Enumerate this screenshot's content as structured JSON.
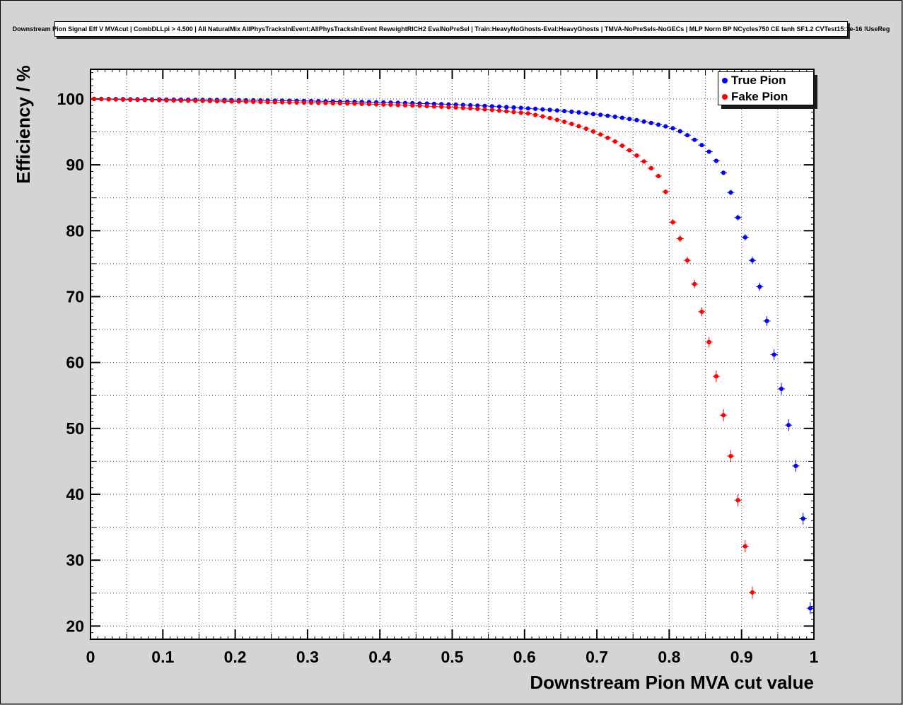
{
  "title": "Downstream Pion Signal Eff V MVAcut | CombDLLpi > 4.500 | All NaturalMix AllPhysTracksInEvent:AllPhysTracksInEvent ReweightRICH2 EvalNoPreSel | Train:HeavyNoGhosts-Eval:HeavyGhosts | TMVA-NoPreSels-NoGECs | MLP Norm BP NCycles750 CE tanh SF1.2 CVTest15:1e-16 !UseReg",
  "colors": {
    "canvas_background": "#d4d4d4",
    "frame_background": "#ffffff",
    "grid": "#444444",
    "true_pion": "#0000ff",
    "fake_pion": "#ff0000"
  },
  "chart_data": {
    "type": "scatter",
    "title": "Downstream Pion Signal Eff V MVAcut | CombDLLpi > 4.500 | All NaturalMix AllPhysTracksInEvent:AllPhysTracksInEvent ReweightRICH2 EvalNoPreSel | Train:HeavyNoGhosts-Eval:HeavyGhosts | TMVA-NoPreSels-NoGECs | MLP Norm BP NCycles750 CE tanh SF1.2 CVTest15:1e-16 !UseReg",
    "xlabel": "Downstream Pion MVA cut value",
    "ylabel": "Efficiency / %",
    "xlim": [
      0,
      1
    ],
    "ylim": [
      18,
      104.5
    ],
    "x_ticks": [
      0,
      0.1,
      0.2,
      0.3,
      0.4,
      0.5,
      0.6,
      0.7,
      0.8,
      0.9,
      1
    ],
    "x_tick_labels": [
      "0",
      "0.1",
      "0.2",
      "0.3",
      "0.4",
      "0.5",
      "0.6",
      "0.7",
      "0.8",
      "0.9",
      "1"
    ],
    "y_ticks": [
      20,
      30,
      40,
      50,
      60,
      70,
      80,
      90,
      100
    ],
    "y_tick_labels": [
      "20",
      "30",
      "40",
      "50",
      "60",
      "70",
      "80",
      "90",
      "100"
    ],
    "grid": {
      "enabled": true,
      "style": "dotted",
      "x_step": 0.05,
      "y_step": 5
    },
    "legend_position": "top-right",
    "series": [
      {
        "name": "True Pion",
        "color": "#0000ff",
        "marker": "filled-circle",
        "x_start": 0.005,
        "x_step": 0.01,
        "y": [
          100.0,
          100.0,
          99.99,
          99.98,
          99.97,
          99.96,
          99.95,
          99.94,
          99.93,
          99.92,
          99.91,
          99.9,
          99.89,
          99.88,
          99.87,
          99.86,
          99.85,
          99.84,
          99.83,
          99.82,
          99.81,
          99.8,
          99.79,
          99.78,
          99.76,
          99.75,
          99.74,
          99.72,
          99.71,
          99.69,
          99.68,
          99.66,
          99.64,
          99.62,
          99.6,
          99.58,
          99.56,
          99.54,
          99.52,
          99.49,
          99.47,
          99.44,
          99.41,
          99.38,
          99.35,
          99.32,
          99.29,
          99.25,
          99.21,
          99.17,
          99.13,
          99.09,
          99.04,
          98.99,
          98.94,
          98.89,
          98.83,
          98.77,
          98.71,
          98.64,
          98.57,
          98.5,
          98.42,
          98.34,
          98.25,
          98.16,
          98.06,
          97.95,
          97.84,
          97.72,
          97.59,
          97.45,
          97.3,
          97.14,
          96.97,
          96.78,
          96.57,
          96.35,
          96.1,
          95.84,
          95.55,
          95.1,
          94.5,
          93.8,
          93.0,
          92.0,
          90.6,
          88.8,
          85.8,
          82.0,
          79.0,
          75.5,
          71.5,
          66.3,
          61.2,
          56.0,
          50.5,
          44.3,
          36.3,
          22.7
        ]
      },
      {
        "name": "Fake Pion",
        "color": "#ff0000",
        "marker": "filled-circle",
        "x_start": 0.005,
        "x_step": 0.01,
        "y": [
          100.0,
          99.97,
          99.94,
          99.92,
          99.9,
          99.88,
          99.86,
          99.84,
          99.82,
          99.81,
          99.79,
          99.77,
          99.75,
          99.73,
          99.71,
          99.7,
          99.68,
          99.66,
          99.64,
          99.62,
          99.61,
          99.59,
          99.57,
          99.55,
          99.53,
          99.52,
          99.5,
          99.48,
          99.46,
          99.44,
          99.42,
          99.4,
          99.38,
          99.36,
          99.34,
          99.31,
          99.28,
          99.25,
          99.22,
          99.19,
          99.16,
          99.12,
          99.08,
          99.04,
          99.0,
          98.96,
          98.91,
          98.86,
          98.81,
          98.76,
          98.7,
          98.63,
          98.56,
          98.49,
          98.42,
          98.33,
          98.23,
          98.13,
          98.02,
          97.91,
          97.8,
          97.58,
          97.35,
          97.1,
          96.83,
          96.54,
          96.22,
          95.87,
          95.49,
          95.07,
          94.61,
          94.1,
          93.54,
          92.91,
          92.21,
          91.42,
          90.52,
          89.49,
          88.29,
          85.9,
          81.3,
          78.8,
          75.5,
          71.9,
          67.7,
          63.1,
          57.9,
          52.0,
          45.8,
          39.1,
          32.1,
          25.1
        ]
      }
    ]
  },
  "legend": {
    "entries": [
      {
        "label": "True Pion",
        "color": "#0000ff"
      },
      {
        "label": "Fake Pion",
        "color": "#ff0000"
      }
    ]
  }
}
